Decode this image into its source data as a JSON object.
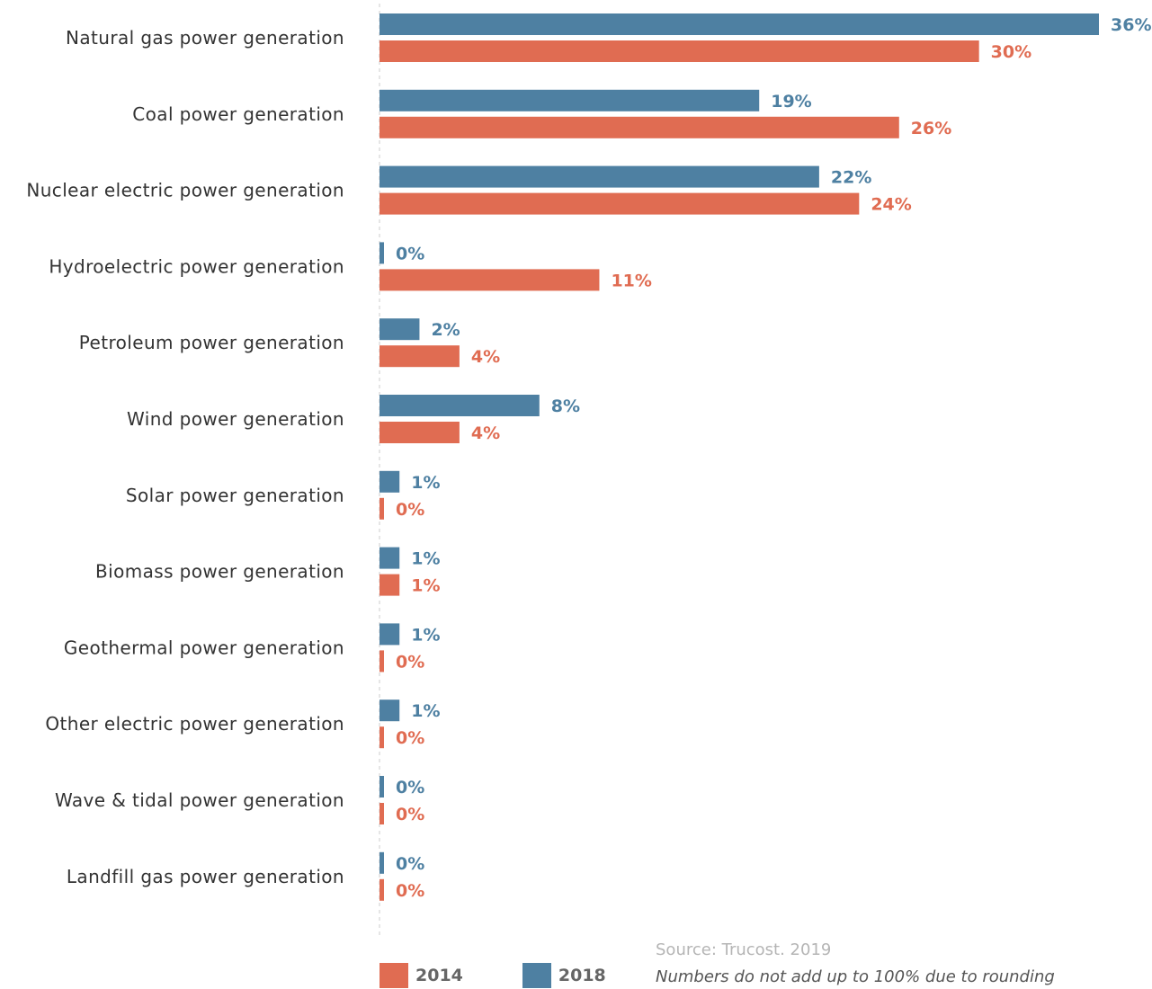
{
  "chart_data": {
    "type": "bar",
    "orientation": "horizontal",
    "categories": [
      "Natural gas power generation",
      "Coal power generation",
      "Nuclear electric power generation",
      "Hydroelectric power generation",
      "Petroleum power generation",
      "Wind power generation",
      "Solar power generation",
      "Biomass power generation",
      "Geothermal power generation",
      "Other electric power generation",
      "Wave & tidal power generation",
      "Landfill gas power generation"
    ],
    "series": [
      {
        "name": "2018",
        "color": "#4e80a2",
        "values": [
          36,
          19,
          22,
          0,
          2,
          8,
          1,
          1,
          1,
          1,
          0,
          0
        ],
        "labels": [
          "36%",
          "19%",
          "22%",
          "0%",
          "2%",
          "8%",
          "1%",
          "1%",
          "1%",
          "1%",
          "0%",
          "0%"
        ]
      },
      {
        "name": "2014",
        "color": "#e06c52",
        "values": [
          30,
          26,
          24,
          11,
          4,
          4,
          0,
          1,
          0,
          0,
          0,
          0
        ],
        "labels": [
          "30%",
          "26%",
          "24%",
          "11%",
          "4%",
          "4%",
          "0%",
          "1%",
          "0%",
          "0%",
          "0%",
          "0%"
        ]
      }
    ],
    "xlim": [
      0,
      36
    ],
    "grid": false,
    "legend_position": "bottom-left"
  },
  "legend": [
    {
      "label": "2014",
      "color": "#e06c52"
    },
    {
      "label": "2018",
      "color": "#4e80a2"
    }
  ],
  "source": "Source: Trucost. 2019",
  "note": "Numbers do not add up to 100% due to rounding"
}
